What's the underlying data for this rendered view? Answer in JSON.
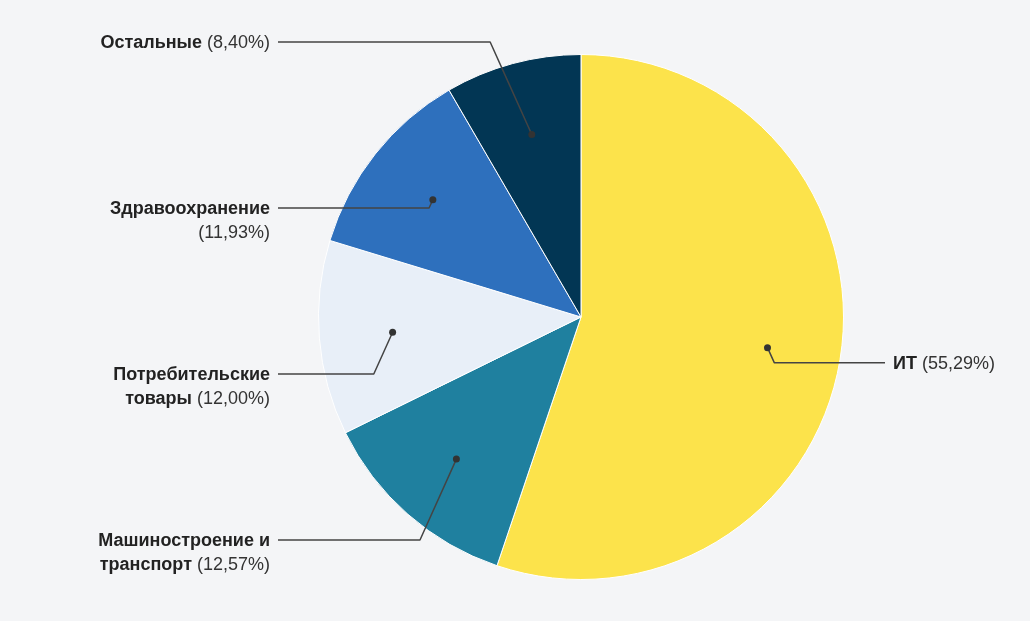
{
  "chart_data": {
    "type": "pie",
    "categories": [
      "ИТ",
      "Машиностроение и транспорт",
      "Потребительские товары",
      "Здравоохранение",
      "Остальные"
    ],
    "values": [
      55.29,
      12.57,
      12.0,
      11.93,
      8.4
    ],
    "value_labels": [
      "(55,29%)",
      "(12,57%)",
      "(12,00%)",
      "(11,93%)",
      "(8,40%)"
    ],
    "colors": [
      "#fce34b",
      "#1f809f",
      "#e8eff8",
      "#2e70bd",
      "#023654"
    ],
    "legend": false
  }
}
